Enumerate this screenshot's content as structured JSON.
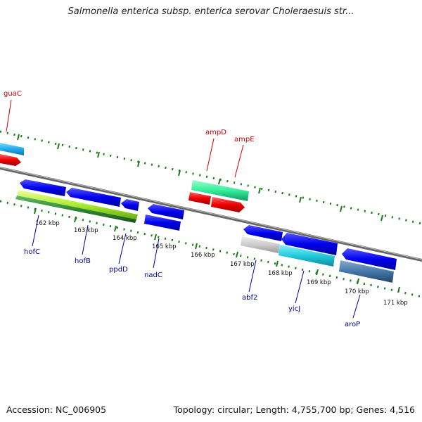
{
  "header": {
    "title": "Salmonella enterica subsp. enterica serovar Choleraesuis str..."
  },
  "footer": {
    "accession": "Accession: NC_006905",
    "summary": "Topology: circular; Length: 4,755,700 bp; Genes: 4,516"
  },
  "ruler": {
    "ticks": [
      "162 kbp",
      "163 kbp",
      "164 kbp",
      "165 kbp",
      "166 kbp",
      "167 kbp",
      "168 kbp",
      "169 kbp",
      "170 kbp",
      "171 kbp"
    ]
  },
  "genes": {
    "top": [
      "guaC",
      "ampD",
      "ampE"
    ],
    "bottom": [
      "hofC",
      "hofB",
      "ppdD",
      "nadC",
      "abf2",
      "yicJ",
      "aroP"
    ]
  },
  "colors": {
    "label_red": "#cc0000",
    "label_blue": "#000099",
    "cds_blue": "#0000ee",
    "gene_red": "#ee0000",
    "dots_green": "#1a7a1a",
    "backbone_gray": "#777777",
    "mint": "#33ee99",
    "sky": "#22aaee",
    "cyan": "#22ccdd",
    "lime": "#aaee33",
    "dark_green": "#338833",
    "light_gray": "#cccccc",
    "steel": "#4477aa"
  }
}
